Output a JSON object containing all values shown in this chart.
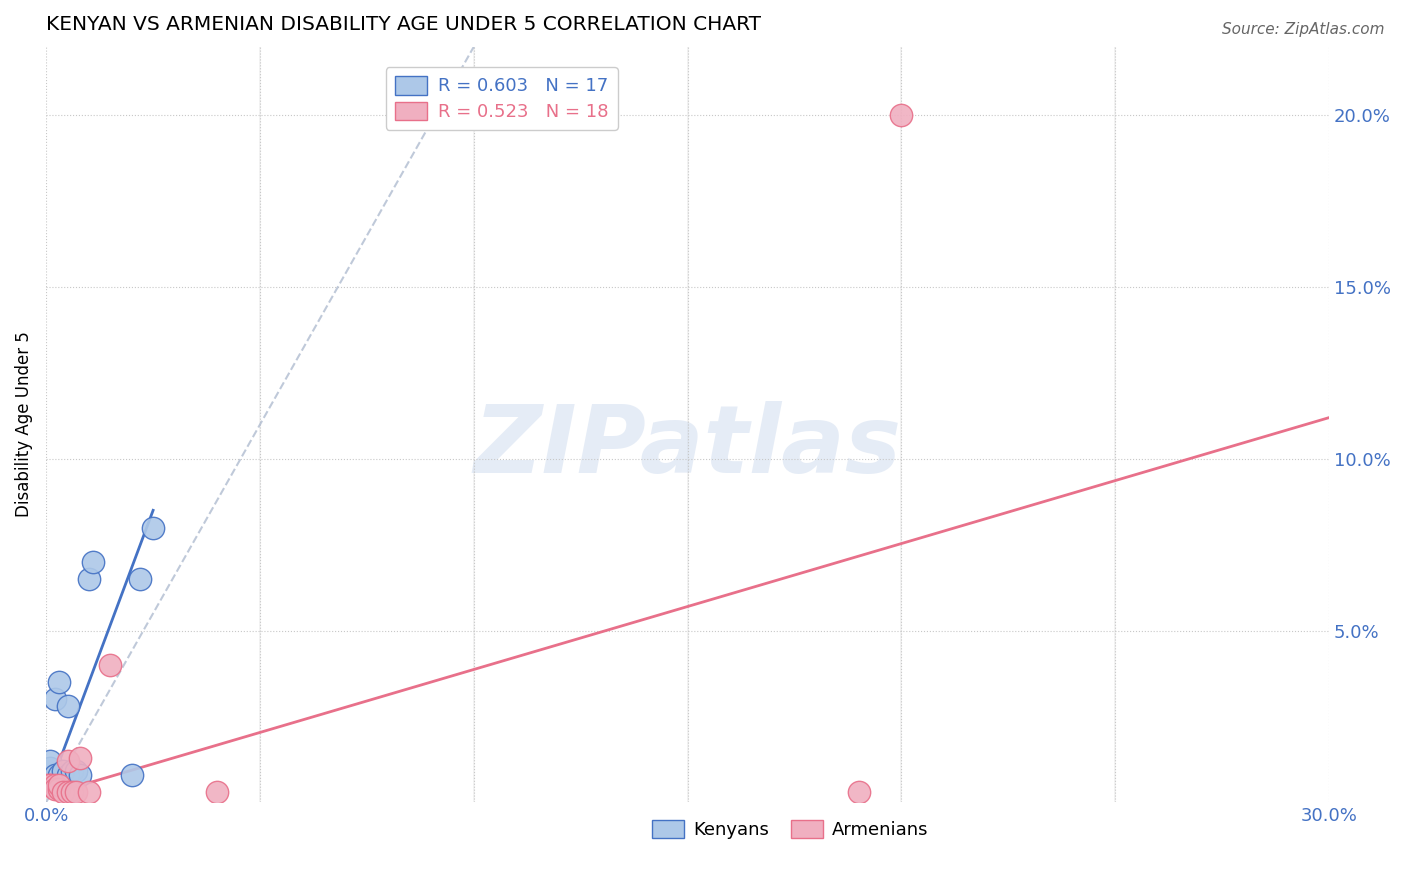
{
  "title": "KENYAN VS ARMENIAN DISABILITY AGE UNDER 5 CORRELATION CHART",
  "source": "Source: ZipAtlas.com",
  "ylabel": "Disability Age Under 5",
  "xlim": [
    0.0,
    0.3
  ],
  "ylim": [
    0.0,
    0.22
  ],
  "xtick_positions": [
    0.0,
    0.05,
    0.1,
    0.15,
    0.2,
    0.25,
    0.3
  ],
  "xtick_labels": [
    "0.0%",
    "",
    "",
    "",
    "",
    "",
    "30.0%"
  ],
  "ytick_positions": [
    0.05,
    0.1,
    0.15,
    0.2
  ],
  "ytick_labels": [
    "5.0%",
    "10.0%",
    "15.0%",
    "20.0%"
  ],
  "kenyan_R": 0.603,
  "kenyan_N": 17,
  "armenian_R": 0.523,
  "armenian_N": 18,
  "kenyan_color": "#adc8e8",
  "armenian_color": "#f0afc0",
  "kenyan_line_color": "#4472C4",
  "armenian_line_color": "#E8708A",
  "diag_line_color": "#b0bcd0",
  "watermark": "ZIPatlas",
  "kenyan_x": [
    0.001,
    0.001,
    0.002,
    0.002,
    0.003,
    0.003,
    0.004,
    0.005,
    0.005,
    0.006,
    0.007,
    0.008,
    0.01,
    0.011,
    0.02,
    0.022,
    0.025
  ],
  "kenyan_y": [
    0.01,
    0.012,
    0.008,
    0.03,
    0.008,
    0.035,
    0.009,
    0.028,
    0.008,
    0.009,
    0.009,
    0.008,
    0.065,
    0.07,
    0.008,
    0.065,
    0.08
  ],
  "armenian_x": [
    0.0,
    0.001,
    0.001,
    0.002,
    0.002,
    0.003,
    0.003,
    0.004,
    0.005,
    0.005,
    0.006,
    0.007,
    0.008,
    0.01,
    0.015,
    0.04,
    0.19,
    0.2
  ],
  "armenian_y": [
    0.005,
    0.005,
    0.005,
    0.005,
    0.004,
    0.004,
    0.005,
    0.003,
    0.003,
    0.012,
    0.003,
    0.003,
    0.013,
    0.003,
    0.04,
    0.003,
    0.003,
    0.2
  ],
  "kenyan_line_x": [
    0.001,
    0.025
  ],
  "kenyan_line_y": [
    0.005,
    0.085
  ],
  "armenian_line_x": [
    0.0,
    0.3
  ],
  "armenian_line_y": [
    0.002,
    0.112
  ],
  "diag_line_x": [
    0.0,
    0.1
  ],
  "diag_line_y": [
    0.0,
    0.22
  ]
}
